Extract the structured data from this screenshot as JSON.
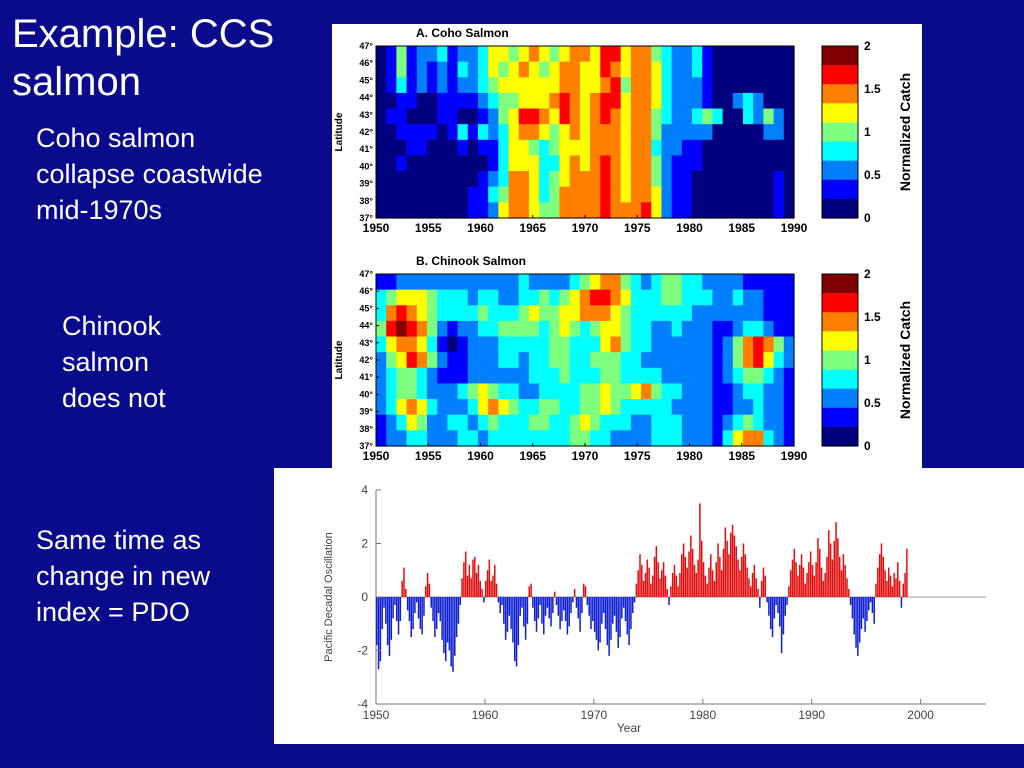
{
  "slide": {
    "title_line1": "Example:  CCS",
    "title_line2": "salmon",
    "text1": [
      "Coho salmon",
      "collapse coastwide",
      "mid-1970s"
    ],
    "text2": [
      "Chinook",
      "salmon",
      "does not"
    ],
    "text3": [
      "Same time as",
      "change in new",
      "index = PDO"
    ]
  },
  "chart_data": [
    {
      "type": "heatmap",
      "title": "A. Coho Salmon",
      "ylabel": "Latitude",
      "x_ticks": [
        "1950",
        "1955",
        "1960",
        "1965",
        "1970",
        "1975",
        "1980",
        "1985",
        "1990"
      ],
      "y_ticks": [
        "47°",
        "46°",
        "45°",
        "44°",
        "43°",
        "42°",
        "41°",
        "40°",
        "39°",
        "38°",
        "37°"
      ],
      "xlim": [
        1950,
        1990
      ],
      "ylim": [
        37,
        47
      ],
      "colorbar": {
        "label": "Normalized Catch",
        "ticks": [
          "2",
          "1.5",
          "1",
          "0.5",
          "0"
        ],
        "range": [
          0,
          2
        ]
      },
      "colors": [
        "#00007f",
        "#0000ff",
        "#007fff",
        "#00ffff",
        "#7fff7f",
        "#ffff00",
        "#ff7f00",
        "#ff0000",
        "#7f0000"
      ],
      "grid": [
        [
          0,
          1,
          4,
          1,
          2,
          2,
          3,
          1,
          2,
          2,
          3,
          5,
          5,
          4,
          5,
          6,
          5,
          4,
          5,
          6,
          6,
          5,
          7,
          7,
          5,
          6,
          6,
          4,
          3,
          2,
          2,
          3,
          1,
          0,
          0,
          0,
          0,
          0,
          0,
          0,
          0
        ],
        [
          0,
          1,
          4,
          1,
          2,
          1,
          2,
          1,
          3,
          2,
          3,
          5,
          4,
          5,
          6,
          5,
          4,
          5,
          6,
          6,
          5,
          5,
          7,
          6,
          5,
          6,
          6,
          5,
          3,
          2,
          2,
          3,
          1,
          0,
          0,
          0,
          0,
          0,
          0,
          0,
          0
        ],
        [
          0,
          1,
          3,
          1,
          2,
          1,
          2,
          1,
          2,
          2,
          3,
          4,
          5,
          5,
          5,
          5,
          5,
          5,
          6,
          6,
          5,
          5,
          6,
          7,
          4,
          6,
          6,
          5,
          3,
          2,
          2,
          2,
          1,
          0,
          0,
          0,
          0,
          0,
          0,
          0,
          0
        ],
        [
          0,
          0,
          1,
          1,
          0,
          0,
          1,
          1,
          1,
          1,
          2,
          3,
          4,
          4,
          5,
          5,
          5,
          6,
          7,
          6,
          5,
          6,
          7,
          7,
          5,
          6,
          6,
          5,
          3,
          2,
          2,
          2,
          1,
          0,
          0,
          2,
          3,
          2,
          0,
          0,
          0
        ],
        [
          0,
          1,
          1,
          0,
          0,
          0,
          1,
          1,
          0,
          0,
          1,
          2,
          4,
          5,
          7,
          7,
          6,
          5,
          7,
          6,
          5,
          6,
          7,
          6,
          5,
          6,
          6,
          4,
          3,
          2,
          2,
          3,
          4,
          3,
          0,
          0,
          3,
          2,
          4,
          2,
          0
        ],
        [
          0,
          0,
          1,
          1,
          1,
          1,
          0,
          1,
          3,
          1,
          3,
          2,
          3,
          5,
          6,
          6,
          5,
          4,
          5,
          6,
          5,
          6,
          6,
          6,
          5,
          6,
          6,
          4,
          2,
          2,
          2,
          2,
          2,
          0,
          0,
          0,
          0,
          0,
          2,
          2,
          0
        ],
        [
          0,
          0,
          0,
          1,
          1,
          0,
          0,
          0,
          1,
          0,
          1,
          1,
          3,
          5,
          5,
          4,
          3,
          4,
          5,
          5,
          5,
          6,
          6,
          6,
          5,
          6,
          6,
          3,
          2,
          2,
          1,
          1,
          0,
          0,
          0,
          0,
          0,
          0,
          0,
          0,
          0
        ],
        [
          0,
          0,
          1,
          0,
          0,
          0,
          0,
          0,
          0,
          0,
          0,
          1,
          3,
          5,
          5,
          5,
          3,
          3,
          5,
          6,
          5,
          6,
          7,
          6,
          5,
          6,
          6,
          4,
          2,
          1,
          1,
          1,
          0,
          0,
          0,
          0,
          0,
          0,
          0,
          0,
          0
        ],
        [
          0,
          0,
          0,
          0,
          0,
          0,
          0,
          0,
          0,
          0,
          1,
          2,
          3,
          6,
          6,
          5,
          3,
          4,
          5,
          6,
          6,
          6,
          7,
          6,
          5,
          6,
          6,
          4,
          2,
          1,
          1,
          0,
          0,
          0,
          0,
          0,
          0,
          0,
          0,
          1,
          0
        ],
        [
          0,
          0,
          0,
          0,
          0,
          0,
          0,
          0,
          0,
          1,
          1,
          3,
          4,
          6,
          6,
          5,
          3,
          4,
          6,
          6,
          6,
          6,
          7,
          6,
          5,
          6,
          6,
          5,
          2,
          1,
          1,
          0,
          0,
          0,
          0,
          0,
          0,
          0,
          0,
          1,
          0
        ],
        [
          0,
          0,
          0,
          0,
          0,
          0,
          0,
          0,
          0,
          1,
          1,
          2,
          5,
          6,
          6,
          5,
          4,
          4,
          6,
          6,
          6,
          6,
          7,
          6,
          6,
          6,
          7,
          5,
          2,
          1,
          1,
          0,
          0,
          0,
          0,
          0,
          0,
          0,
          0,
          1,
          0
        ]
      ]
    },
    {
      "type": "heatmap",
      "title": "B. Chinook Salmon",
      "ylabel": "Latitude",
      "x_ticks": [
        "1950",
        "1955",
        "1960",
        "1965",
        "1970",
        "1975",
        "1980",
        "1985",
        "1990"
      ],
      "y_ticks": [
        "47°",
        "46°",
        "45°",
        "44°",
        "43°",
        "42°",
        "41°",
        "40°",
        "39°",
        "38°",
        "37°"
      ],
      "xlim": [
        1950,
        1990
      ],
      "ylim": [
        37,
        47
      ],
      "colorbar": {
        "label": "Normalized Catch",
        "ticks": [
          "2",
          "1.5",
          "1",
          "0.5",
          "0"
        ],
        "range": [
          0,
          2
        ]
      },
      "colors": [
        "#00007f",
        "#0000ff",
        "#007fff",
        "#00ffff",
        "#7fff7f",
        "#ffff00",
        "#ff7f00",
        "#ff0000",
        "#7f0000"
      ],
      "grid": [
        [
          1,
          1,
          2,
          2,
          2,
          2,
          2,
          2,
          2,
          2,
          2,
          2,
          2,
          2,
          3,
          2,
          2,
          2,
          2,
          3,
          4,
          5,
          6,
          6,
          4,
          3,
          2,
          3,
          4,
          4,
          3,
          3,
          2,
          2,
          2,
          2,
          1,
          1,
          1,
          1,
          1
        ],
        [
          3,
          4,
          5,
          5,
          5,
          4,
          3,
          3,
          3,
          2,
          3,
          3,
          2,
          2,
          3,
          3,
          4,
          3,
          4,
          5,
          6,
          7,
          7,
          6,
          5,
          3,
          3,
          3,
          4,
          4,
          3,
          3,
          3,
          2,
          2,
          3,
          2,
          2,
          1,
          1,
          1
        ],
        [
          3,
          6,
          7,
          6,
          5,
          4,
          3,
          3,
          3,
          3,
          4,
          3,
          3,
          3,
          4,
          5,
          4,
          4,
          5,
          5,
          6,
          6,
          6,
          5,
          4,
          3,
          3,
          3,
          3,
          3,
          3,
          2,
          2,
          2,
          2,
          2,
          2,
          2,
          1,
          1,
          1
        ],
        [
          4,
          7,
          8,
          7,
          6,
          4,
          2,
          1,
          2,
          2,
          3,
          3,
          4,
          4,
          4,
          4,
          3,
          4,
          5,
          4,
          3,
          4,
          5,
          5,
          4,
          3,
          3,
          2,
          2,
          3,
          2,
          2,
          2,
          1,
          1,
          2,
          3,
          3,
          2,
          1,
          1
        ],
        [
          3,
          5,
          6,
          6,
          5,
          3,
          1,
          0,
          1,
          2,
          2,
          2,
          3,
          3,
          3,
          3,
          3,
          4,
          4,
          3,
          3,
          3,
          5,
          6,
          4,
          3,
          3,
          2,
          2,
          2,
          2,
          2,
          2,
          1,
          2,
          4,
          6,
          7,
          6,
          4,
          2
        ],
        [
          2,
          4,
          5,
          7,
          6,
          4,
          2,
          1,
          1,
          2,
          2,
          2,
          3,
          3,
          2,
          3,
          3,
          4,
          4,
          3,
          3,
          4,
          4,
          4,
          3,
          3,
          2,
          2,
          2,
          2,
          2,
          2,
          2,
          1,
          2,
          4,
          6,
          7,
          5,
          3,
          2
        ],
        [
          2,
          3,
          4,
          4,
          3,
          2,
          1,
          1,
          1,
          2,
          2,
          2,
          2,
          2,
          2,
          3,
          3,
          3,
          4,
          3,
          3,
          3,
          4,
          4,
          3,
          3,
          3,
          3,
          2,
          2,
          2,
          2,
          2,
          1,
          2,
          3,
          4,
          4,
          3,
          2,
          1
        ],
        [
          2,
          3,
          4,
          4,
          3,
          2,
          2,
          2,
          3,
          4,
          5,
          4,
          3,
          3,
          2,
          2,
          3,
          3,
          3,
          3,
          4,
          4,
          5,
          4,
          4,
          5,
          6,
          4,
          3,
          3,
          2,
          2,
          2,
          1,
          1,
          2,
          3,
          3,
          2,
          2,
          1
        ],
        [
          2,
          3,
          5,
          6,
          5,
          3,
          2,
          2,
          2,
          3,
          5,
          6,
          5,
          4,
          3,
          3,
          4,
          4,
          3,
          3,
          4,
          4,
          5,
          4,
          3,
          3,
          3,
          3,
          3,
          2,
          2,
          2,
          2,
          1,
          1,
          2,
          2,
          3,
          2,
          2,
          1
        ],
        [
          1,
          2,
          3,
          5,
          4,
          2,
          2,
          3,
          3,
          2,
          3,
          4,
          3,
          3,
          3,
          4,
          4,
          3,
          3,
          4,
          5,
          4,
          3,
          3,
          3,
          2,
          2,
          3,
          3,
          3,
          2,
          2,
          2,
          1,
          2,
          3,
          4,
          3,
          2,
          2,
          1
        ],
        [
          1,
          2,
          2,
          3,
          3,
          2,
          2,
          2,
          3,
          3,
          2,
          3,
          3,
          3,
          3,
          3,
          3,
          3,
          3,
          4,
          4,
          3,
          3,
          2,
          2,
          2,
          2,
          3,
          3,
          3,
          2,
          2,
          2,
          1,
          3,
          5,
          6,
          6,
          3,
          2,
          1
        ]
      ]
    },
    {
      "type": "bar",
      "title": "",
      "xlabel": "Year",
      "ylabel": "Pacific Decadal Oscillation",
      "xlim": [
        1950,
        2006
      ],
      "ylim": [
        -4,
        4
      ],
      "x_ticks": [
        "1950",
        "1960",
        "1970",
        "1980",
        "1990",
        "2000"
      ],
      "y_ticks": [
        "4",
        "2",
        "0",
        "-2",
        "-4"
      ],
      "colors": {
        "positive": "#e01010",
        "negative": "#1020d0"
      },
      "start_year": 1950,
      "months_per_value": 2,
      "values": [
        -1.8,
        -2.7,
        -2.4,
        -1.2,
        -0.4,
        -1.0,
        -1.8,
        -2.2,
        -1.6,
        -0.8,
        -0.3,
        -0.9,
        -1.4,
        -0.9,
        0.6,
        1.1,
        0.3,
        -0.5,
        -0.9,
        -1.5,
        -1.2,
        -0.6,
        -0.2,
        -0.8,
        -1.2,
        -1.4,
        -0.7,
        0.4,
        0.9,
        0.5,
        -0.4,
        -0.9,
        -1.5,
        -1.2,
        -0.6,
        -0.9,
        -1.6,
        -2.1,
        -2.4,
        -1.7,
        -2.0,
        -2.6,
        -2.8,
        -2.2,
        -1.5,
        -1.0,
        -0.3,
        0.7,
        1.3,
        1.7,
        0.8,
        1.2,
        0.7,
        1.4,
        1.5,
        0.9,
        1.2,
        0.6,
        0.3,
        -0.2,
        0.6,
        1.0,
        1.4,
        0.6,
        0.8,
        1.2,
        0.5,
        -0.2,
        -0.6,
        -0.3,
        -1.0,
        -1.6,
        -1.3,
        -0.7,
        -1.2,
        -1.7,
        -2.4,
        -2.6,
        -1.8,
        -0.7,
        -0.4,
        -1.1,
        -1.6,
        -1.0,
        0.4,
        0.5,
        -0.4,
        -0.9,
        -1.3,
        -0.8,
        -0.3,
        -1.0,
        -1.4,
        -0.7,
        -0.4,
        -0.8,
        -1.1,
        -0.6,
        0.2,
        -0.3,
        -0.7,
        -1.2,
        -0.9,
        -0.5,
        -0.9,
        -1.4,
        -1.1,
        -0.6,
        -0.2,
        0.3,
        -0.4,
        -0.8,
        -1.3,
        -0.6,
        0.5,
        0.4,
        -0.3,
        -0.7,
        -1.2,
        -0.9,
        -1.3,
        -1.6,
        -2.0,
        -1.7,
        -1.0,
        -0.6,
        -1.2,
        -1.8,
        -2.2,
        -1.6,
        -1.0,
        -0.7,
        -1.3,
        -1.9,
        -1.5,
        -0.8,
        -0.4,
        -0.9,
        -1.4,
        -1.8,
        -1.2,
        -0.6,
        -0.2,
        0.5,
        1.0,
        1.6,
        1.2,
        0.6,
        0.9,
        1.4,
        1.1,
        0.5,
        0.8,
        1.5,
        1.9,
        1.3,
        0.7,
        1.0,
        1.3,
        0.8,
        0.3,
        -0.3,
        0.4,
        0.9,
        1.2,
        0.8,
        0.4,
        0.9,
        1.6,
        2.0,
        1.5,
        1.1,
        1.7,
        2.3,
        1.8,
        1.2,
        0.9,
        1.4,
        3.5,
        2.1,
        1.3,
        0.8,
        0.5,
        1.1,
        1.6,
        1.0,
        0.6,
        1.3,
        2.0,
        1.5,
        1.0,
        1.8,
        2.6,
        2.1,
        1.6,
        2.4,
        2.7,
        2.3,
        1.9,
        1.4,
        1.0,
        1.5,
        2.0,
        1.6,
        1.1,
        0.7,
        0.4,
        0.9,
        1.2,
        0.7,
        0.3,
        -0.4,
        0.6,
        1.1,
        0.8,
        -0.2,
        -0.7,
        -1.2,
        -1.5,
        -0.8,
        -0.3,
        -0.6,
        -1.1,
        -2.1,
        -1.4,
        -0.7,
        -0.3,
        0.4,
        1.0,
        1.4,
        1.8,
        1.3,
        0.8,
        1.2,
        1.6,
        1.1,
        0.5,
        0.9,
        1.3,
        1.7,
        1.2,
        0.8,
        1.3,
        2.2,
        1.8,
        1.1,
        0.6,
        0.9,
        1.5,
        2.5,
        2.0,
        1.4,
        2.1,
        2.8,
        2.2,
        1.5,
        1.0,
        1.6,
        1.2,
        0.7,
        0.3,
        -0.3,
        -0.8,
        -1.4,
        -1.9,
        -2.2,
        -1.7,
        -1.2,
        -0.8,
        -1.3,
        -0.9,
        -0.5,
        -0.2,
        -0.6,
        -1.0,
        0.5,
        1.1,
        1.6,
        2.0,
        1.5,
        1.0,
        0.6,
        1.1,
        0.8,
        0.4,
        0.9,
        0.7,
        1.3,
        0.6,
        -0.4,
        0.5,
        0.9,
        1.8
      ]
    }
  ]
}
